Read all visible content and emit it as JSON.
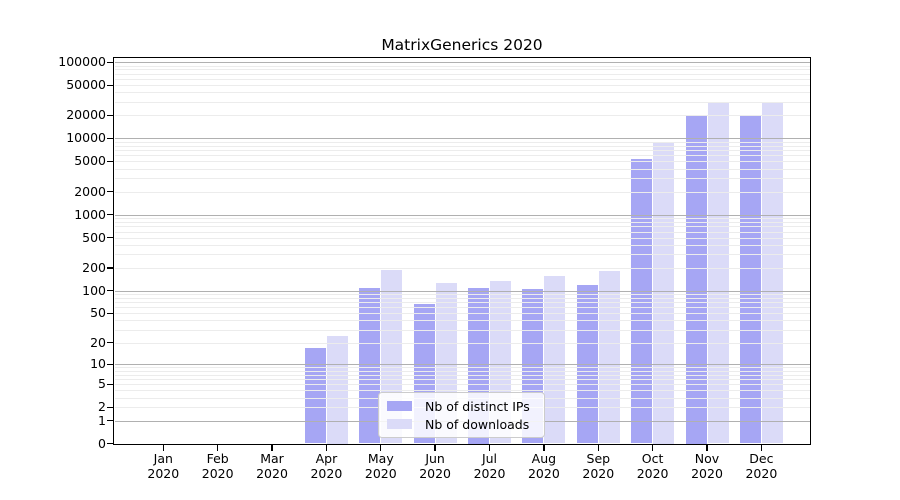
{
  "chart_data": {
    "type": "bar",
    "title": "MatrixGenerics 2020",
    "categories": [
      "Jan 2020",
      "Feb 2020",
      "Mar 2020",
      "Apr 2020",
      "May 2020",
      "Jun 2020",
      "Jul 2020",
      "Aug 2020",
      "Sep 2020",
      "Oct 2020",
      "Nov 2020",
      "Dec 2020"
    ],
    "series": [
      {
        "name": "Nb of distinct IPs",
        "color": "#a6a6f4",
        "values": [
          0,
          0,
          0,
          17,
          107,
          66,
          108,
          104,
          120,
          5400,
          20500,
          19400
        ]
      },
      {
        "name": "Nb of downloads",
        "color": "#dbdbf8",
        "values": [
          0,
          0,
          0,
          25,
          185,
          125,
          135,
          155,
          180,
          8800,
          30000,
          28800
        ]
      }
    ],
    "yscale": "log1p",
    "ylim": [
      0,
      100000
    ],
    "y_ticks": [
      0,
      1,
      2,
      5,
      10,
      20,
      50,
      100,
      200,
      500,
      1000,
      2000,
      5000,
      10000,
      20000,
      50000,
      100000
    ],
    "grid": "horizontal, minor + major decades, drawn over bars",
    "legend_position": "lower center",
    "xlabel": "",
    "ylabel": ""
  },
  "colors": {
    "major_grid": "#b0b0b0",
    "minor_grid": "#ececec",
    "frame": "#000000",
    "background": "#ffffff"
  }
}
